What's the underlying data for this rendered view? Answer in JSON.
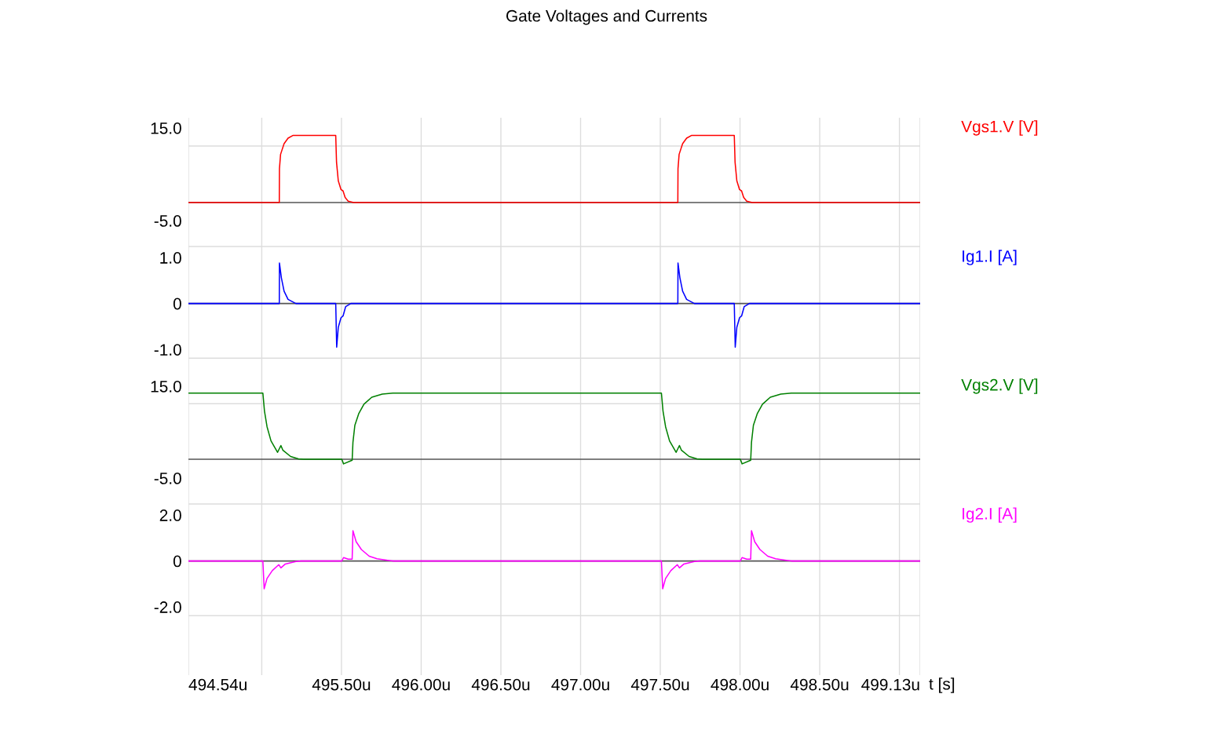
{
  "chart_data": [
    {
      "type": "line",
      "title": "Gate Voltages and Currents",
      "tick_labels": "y",
      "grid": "x",
      "xlim": [
        494.54,
        499.13
      ],
      "xticks": [
        {
          "value": 494.54,
          "label": null
        },
        {
          "value": 495.0,
          "label": null
        },
        {
          "value": 495.5,
          "label": null
        },
        {
          "value": 496.0,
          "label": null
        },
        {
          "value": 496.5,
          "label": null
        },
        {
          "value": 497.0,
          "label": null
        },
        {
          "value": 497.5,
          "label": null
        },
        {
          "value": 498.0,
          "label": null
        },
        {
          "value": 498.5,
          "label": null
        },
        {
          "value": 499.0,
          "label": null
        },
        {
          "value": 499.13,
          "label": null
        }
      ],
      "ylim": [
        -9.4,
        17.2
      ],
      "yticks": [
        {
          "value": 15,
          "label": "15.0"
        },
        {
          "value": -5,
          "label": "-5.0"
        }
      ],
      "ref_lines": [
        {
          "axis": "y",
          "value": 11.1,
          "color": "#dddddd"
        },
        {
          "axis": "y",
          "value": -1.1,
          "color": "#555555"
        }
      ],
      "series": [
        {
          "name": "Vgs1.V [V]",
          "color": "#ff0000",
          "x": [
            494.54,
            495.11,
            495.111,
            495.118,
            495.14,
            495.165,
            495.197,
            495.464,
            495.469,
            495.48,
            495.497,
            495.51,
            495.523,
            495.542,
            495.576,
            497.61,
            497.611,
            497.618,
            497.64,
            497.665,
            497.697,
            497.964,
            497.969,
            497.98,
            497.997,
            498.01,
            498.023,
            498.042,
            498.076,
            499.13
          ],
          "values": [
            -1.1,
            -1.1,
            6.2,
            9.3,
            11.6,
            12.8,
            13.4,
            13.4,
            7.6,
            3.6,
            1.7,
            1.4,
            0.0,
            -0.8,
            -1.1,
            -1.1,
            6.2,
            9.3,
            11.6,
            12.8,
            13.4,
            13.4,
            7.6,
            3.6,
            1.7,
            1.4,
            0.0,
            -0.8,
            -1.1,
            -1.1
          ]
        }
      ]
    },
    {
      "type": "line",
      "tick_labels": "y",
      "grid": "x",
      "xlim": [
        494.54,
        499.13
      ],
      "xticks": [
        {
          "value": 494.54,
          "label": null
        },
        {
          "value": 495.0,
          "label": null
        },
        {
          "value": 495.5,
          "label": null
        },
        {
          "value": 496.0,
          "label": null
        },
        {
          "value": 496.5,
          "label": null
        },
        {
          "value": 497.0,
          "label": null
        },
        {
          "value": 497.5,
          "label": null
        },
        {
          "value": 498.0,
          "label": null
        },
        {
          "value": 498.5,
          "label": null
        },
        {
          "value": 499.0,
          "label": null
        },
        {
          "value": 499.13,
          "label": null
        }
      ],
      "ylim": [
        -1.39,
        1.36
      ],
      "yticks": [
        {
          "value": 1,
          "label": "1.0"
        },
        {
          "value": 0,
          "label": "0"
        },
        {
          "value": -1,
          "label": "-1.0"
        }
      ],
      "ref_lines": [
        {
          "axis": "y",
          "value": 1.24,
          "color": "#dddddd"
        },
        {
          "axis": "y",
          "value": -1.19,
          "color": "#dddddd"
        },
        {
          "axis": "y",
          "value": 0,
          "color": "#555555"
        }
      ],
      "series": [
        {
          "name": "Ig1.I [A]",
          "color": "#0000ff",
          "x": [
            494.54,
            495.11,
            495.111,
            495.123,
            495.14,
            495.165,
            495.214,
            495.464,
            495.47,
            495.48,
            495.497,
            495.51,
            495.526,
            495.559,
            497.61,
            497.611,
            497.623,
            497.64,
            497.665,
            497.714,
            497.964,
            497.97,
            497.98,
            497.997,
            498.01,
            498.026,
            498.059,
            499.13
          ],
          "values": [
            0,
            0,
            0.88,
            0.56,
            0.27,
            0.09,
            0,
            0,
            -0.95,
            -0.52,
            -0.31,
            -0.27,
            -0.07,
            0,
            0,
            0.88,
            0.56,
            0.27,
            0.09,
            0,
            0,
            -0.95,
            -0.52,
            -0.31,
            -0.27,
            -0.07,
            0,
            0
          ]
        }
      ]
    },
    {
      "type": "line",
      "tick_labels": "y",
      "grid": "x",
      "xlim": [
        494.54,
        499.13
      ],
      "xticks": [
        {
          "value": 494.54,
          "label": null
        },
        {
          "value": 495.0,
          "label": null
        },
        {
          "value": 495.5,
          "label": null
        },
        {
          "value": 496.0,
          "label": null
        },
        {
          "value": 496.5,
          "label": null
        },
        {
          "value": 497.0,
          "label": null
        },
        {
          "value": 497.5,
          "label": null
        },
        {
          "value": 498.0,
          "label": null
        },
        {
          "value": 498.5,
          "label": null
        },
        {
          "value": 499.0,
          "label": null
        },
        {
          "value": 499.13,
          "label": null
        }
      ],
      "ylim": [
        -9.1,
        19.1
      ],
      "yticks": [
        {
          "value": 15,
          "label": "15.0"
        },
        {
          "value": -5,
          "label": "-5.0"
        }
      ],
      "ref_lines": [
        {
          "axis": "y",
          "value": 11.2,
          "color": "#dddddd"
        },
        {
          "axis": "y",
          "value": -0.9,
          "color": "#555555"
        }
      ],
      "series": [
        {
          "name": "Vgs2.V [V]",
          "color": "#008000",
          "x": [
            494.54,
            495.007,
            495.017,
            495.033,
            495.058,
            495.099,
            495.12,
            495.132,
            495.181,
            495.23,
            495.263,
            495.502,
            495.513,
            495.567,
            495.572,
            495.584,
            495.609,
            495.641,
            495.69,
            495.756,
            495.822,
            497.507,
            497.517,
            497.533,
            497.558,
            497.599,
            497.62,
            497.632,
            497.681,
            497.73,
            497.763,
            498.002,
            498.013,
            498.067,
            498.072,
            498.084,
            498.109,
            498.141,
            498.19,
            498.256,
            498.322,
            499.13
          ],
          "values": [
            13.5,
            13.5,
            9.6,
            6.2,
            3.1,
            0.6,
            2.1,
            1.1,
            -0.3,
            -0.8,
            -0.9,
            -0.9,
            -1.9,
            -1.1,
            2.8,
            6.5,
            9.1,
            11.1,
            12.6,
            13.3,
            13.5,
            13.5,
            9.6,
            6.2,
            3.1,
            0.6,
            2.1,
            1.1,
            -0.3,
            -0.8,
            -0.9,
            -0.9,
            -1.9,
            -1.1,
            2.8,
            6.5,
            9.1,
            11.1,
            12.6,
            13.3,
            13.5,
            13.5
          ]
        }
      ]
    },
    {
      "type": "line",
      "xlabel": "t [s]",
      "grid": "x",
      "xlim": [
        494.54,
        499.13
      ],
      "xticks": [
        {
          "value": 494.54,
          "label": "494.54u"
        },
        {
          "value": 495.0,
          "label": null
        },
        {
          "value": 495.5,
          "label": "495.50u"
        },
        {
          "value": 496.0,
          "label": "496.00u"
        },
        {
          "value": 496.5,
          "label": "496.50u"
        },
        {
          "value": 497.0,
          "label": "497.00u"
        },
        {
          "value": 497.5,
          "label": "497.50u"
        },
        {
          "value": 498.0,
          "label": "498.00u"
        },
        {
          "value": 498.5,
          "label": "498.50u"
        },
        {
          "value": 499.0,
          "label": null
        },
        {
          "value": 499.13,
          "label": "499.13u"
        }
      ],
      "ylim": [
        -4.97,
        2.79
      ],
      "yticks": [
        {
          "value": 2,
          "label": "2.0"
        },
        {
          "value": 0,
          "label": "0"
        },
        {
          "value": -2,
          "label": "-2.0"
        }
      ],
      "ref_lines": [
        {
          "axis": "y",
          "value": 2.48,
          "color": "#dddddd"
        },
        {
          "axis": "y",
          "value": -2.38,
          "color": "#dddddd"
        },
        {
          "axis": "y",
          "value": 0,
          "color": "#555555"
        }
      ],
      "series": [
        {
          "name": "Ig2.I [A]",
          "color": "#ff00ff",
          "x": [
            494.54,
            495.007,
            495.015,
            495.033,
            495.066,
            495.107,
            495.12,
            495.148,
            495.214,
            495.247,
            495.502,
            495.513,
            495.542,
            495.567,
            495.572,
            495.592,
            495.625,
            495.674,
            495.723,
            495.789,
            495.822,
            497.507,
            497.515,
            497.533,
            497.566,
            497.607,
            497.62,
            497.648,
            497.714,
            497.747,
            498.002,
            498.013,
            498.042,
            498.067,
            498.072,
            498.092,
            498.125,
            498.174,
            498.223,
            498.289,
            498.322,
            499.13
          ],
          "values": [
            0,
            0,
            -1.21,
            -0.76,
            -0.42,
            -0.16,
            -0.3,
            -0.13,
            -0.02,
            0,
            0,
            0.15,
            0.08,
            0.08,
            1.32,
            0.84,
            0.5,
            0.21,
            0.1,
            0.03,
            0,
            0,
            -1.21,
            -0.76,
            -0.42,
            -0.16,
            -0.3,
            -0.13,
            -0.02,
            0,
            0,
            0.15,
            0.08,
            0.08,
            1.32,
            0.84,
            0.5,
            0.21,
            0.1,
            0.03,
            0,
            0
          ]
        }
      ]
    }
  ]
}
